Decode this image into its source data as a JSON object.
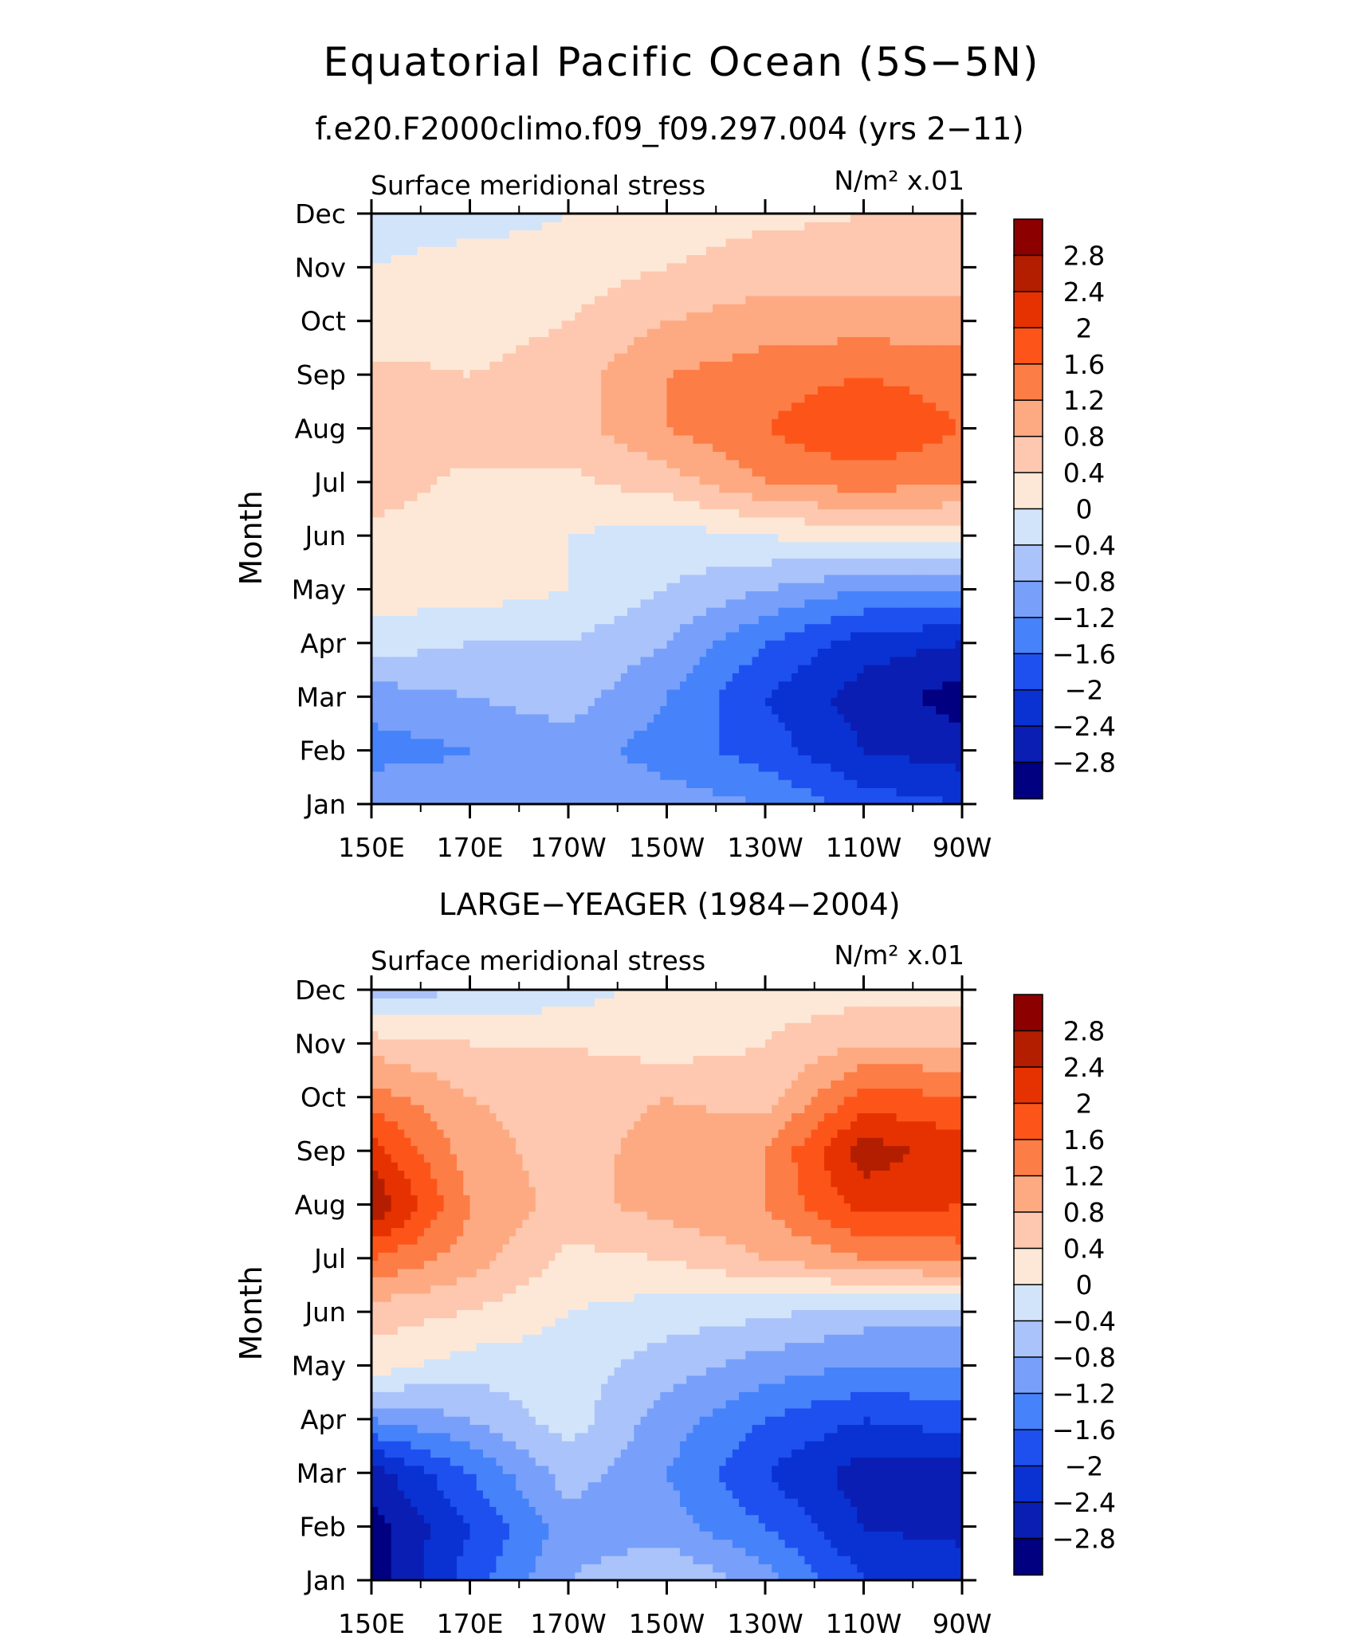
{
  "figure": {
    "title": "Equatorial Pacific Ocean (5S−5N)",
    "subtitle": "f.e20.F2000climo.f09_f09.297.004 (yrs 2−11)"
  },
  "chart_data": [
    {
      "type": "heatmap",
      "title": "",
      "left_label": "Surface meridional stress",
      "right_label": "N/m² x.01",
      "ylabel": "Month",
      "xlabel": "",
      "x_ticks": [
        "150E",
        "170E",
        "170W",
        "150W",
        "130W",
        "110W",
        "90W"
      ],
      "x_range": [
        150,
        270
      ],
      "y_ticks": [
        "Jan",
        "Feb",
        "Mar",
        "Apr",
        "May",
        "Jun",
        "Jul",
        "Aug",
        "Sep",
        "Oct",
        "Nov",
        "Dec"
      ],
      "colorbar_labels": [
        "2.8",
        "2.4",
        "2",
        "1.6",
        "1.2",
        "0.8",
        "0.4",
        "0",
        "−0.4",
        "−0.8",
        "−1.2",
        "−1.6",
        "−2",
        "−2.4",
        "−2.8"
      ],
      "levels": [
        -2.8,
        -2.4,
        -2.0,
        -1.6,
        -1.2,
        -0.8,
        -0.4,
        0,
        0.4,
        0.8,
        1.2,
        1.6,
        2.0,
        2.4,
        2.8
      ],
      "colors": [
        "#000080",
        "#0a1eb4",
        "#0a32d2",
        "#1e50f0",
        "#4682fa",
        "#78a0fa",
        "#aac3fa",
        "#d2e4fa",
        "#fde8d7",
        "#fdc8af",
        "#fdaa82",
        "#fd7d46",
        "#fd5519",
        "#e63200",
        "#b41e00",
        "#8c0000"
      ],
      "lon": [
        150,
        170,
        190,
        210,
        230,
        250,
        270
      ],
      "values": [
        [
          -0.8,
          -1.0,
          -0.8,
          -1.0,
          -1.2,
          -1.8,
          -2.0
        ],
        [
          -1.4,
          -1.2,
          -1.0,
          -1.4,
          -1.8,
          -2.4,
          -2.6
        ],
        [
          -1.0,
          -0.8,
          -0.6,
          -1.2,
          -2.0,
          -2.6,
          -3.0
        ],
        [
          -0.2,
          -0.4,
          -0.4,
          -0.8,
          -1.6,
          -2.2,
          -2.4
        ],
        [
          0.2,
          0.2,
          0.0,
          -0.4,
          -0.8,
          -1.2,
          -1.2
        ],
        [
          0.3,
          0.2,
          0.0,
          -0.2,
          0.0,
          0.2,
          0.2
        ],
        [
          0.6,
          0.3,
          0.3,
          0.6,
          1.2,
          1.4,
          1.2
        ],
        [
          0.6,
          0.6,
          0.6,
          1.2,
          1.6,
          2.0,
          1.6
        ],
        [
          0.5,
          0.4,
          0.6,
          1.2,
          1.4,
          1.6,
          1.4
        ],
        [
          0.2,
          0.2,
          0.4,
          0.8,
          1.0,
          1.0,
          1.0
        ],
        [
          0.0,
          0.2,
          0.2,
          0.4,
          0.6,
          0.6,
          0.6
        ],
        [
          -0.2,
          -0.2,
          0.0,
          0.2,
          0.3,
          0.4,
          0.4
        ]
      ]
    },
    {
      "type": "heatmap",
      "title": "LARGE−YEAGER (1984−2004)",
      "left_label": "Surface meridional stress",
      "right_label": "N/m² x.01",
      "ylabel": "Month",
      "xlabel": "",
      "x_ticks": [
        "150E",
        "170E",
        "170W",
        "150W",
        "130W",
        "110W",
        "90W"
      ],
      "x_range": [
        150,
        270
      ],
      "y_ticks": [
        "Jan",
        "Feb",
        "Mar",
        "Apr",
        "May",
        "Jun",
        "Jul",
        "Aug",
        "Sep",
        "Oct",
        "Nov",
        "Dec"
      ],
      "colorbar_labels": [
        "2.8",
        "2.4",
        "2",
        "1.6",
        "1.2",
        "0.8",
        "0.4",
        "0",
        "−0.4",
        "−0.8",
        "−1.2",
        "−1.6",
        "−2",
        "−2.4",
        "−2.8"
      ],
      "levels": [
        -2.8,
        -2.4,
        -2.0,
        -1.6,
        -1.2,
        -0.8,
        -0.4,
        0,
        0.4,
        0.8,
        1.2,
        1.6,
        2.0,
        2.4,
        2.8
      ],
      "colors": [
        "#000080",
        "#0a1eb4",
        "#0a32d2",
        "#1e50f0",
        "#4682fa",
        "#78a0fa",
        "#aac3fa",
        "#d2e4fa",
        "#fde8d7",
        "#fdc8af",
        "#fdaa82",
        "#fd7d46",
        "#fd5519",
        "#e63200",
        "#b41e00",
        "#8c0000"
      ],
      "lon": [
        150,
        170,
        190,
        210,
        230,
        250,
        270
      ],
      "values": [
        [
          -3.0,
          -1.8,
          -0.8,
          -0.4,
          -1.0,
          -2.0,
          -2.0
        ],
        [
          -3.0,
          -2.0,
          -1.0,
          -1.0,
          -1.6,
          -2.4,
          -2.6
        ],
        [
          -2.6,
          -1.6,
          -0.6,
          -1.2,
          -2.0,
          -2.6,
          -2.6
        ],
        [
          -1.2,
          -0.8,
          -0.2,
          -1.0,
          -1.6,
          -2.0,
          -1.8
        ],
        [
          0.2,
          -0.2,
          -0.2,
          -0.6,
          -1.0,
          -1.2,
          -1.2
        ],
        [
          0.6,
          0.4,
          0.0,
          -0.2,
          -0.3,
          -0.6,
          -0.6
        ],
        [
          1.6,
          1.0,
          0.3,
          0.4,
          0.8,
          1.2,
          1.4
        ],
        [
          2.8,
          1.2,
          0.6,
          1.0,
          1.2,
          2.2,
          2.0
        ],
        [
          2.2,
          1.0,
          0.6,
          1.0,
          1.2,
          2.6,
          2.2
        ],
        [
          1.4,
          0.8,
          0.6,
          0.8,
          0.6,
          1.8,
          1.6
        ],
        [
          0.6,
          0.4,
          0.4,
          0.2,
          0.4,
          0.8,
          0.8
        ],
        [
          -0.6,
          -0.4,
          -0.2,
          0.2,
          0.2,
          0.2,
          0.2
        ]
      ]
    }
  ]
}
